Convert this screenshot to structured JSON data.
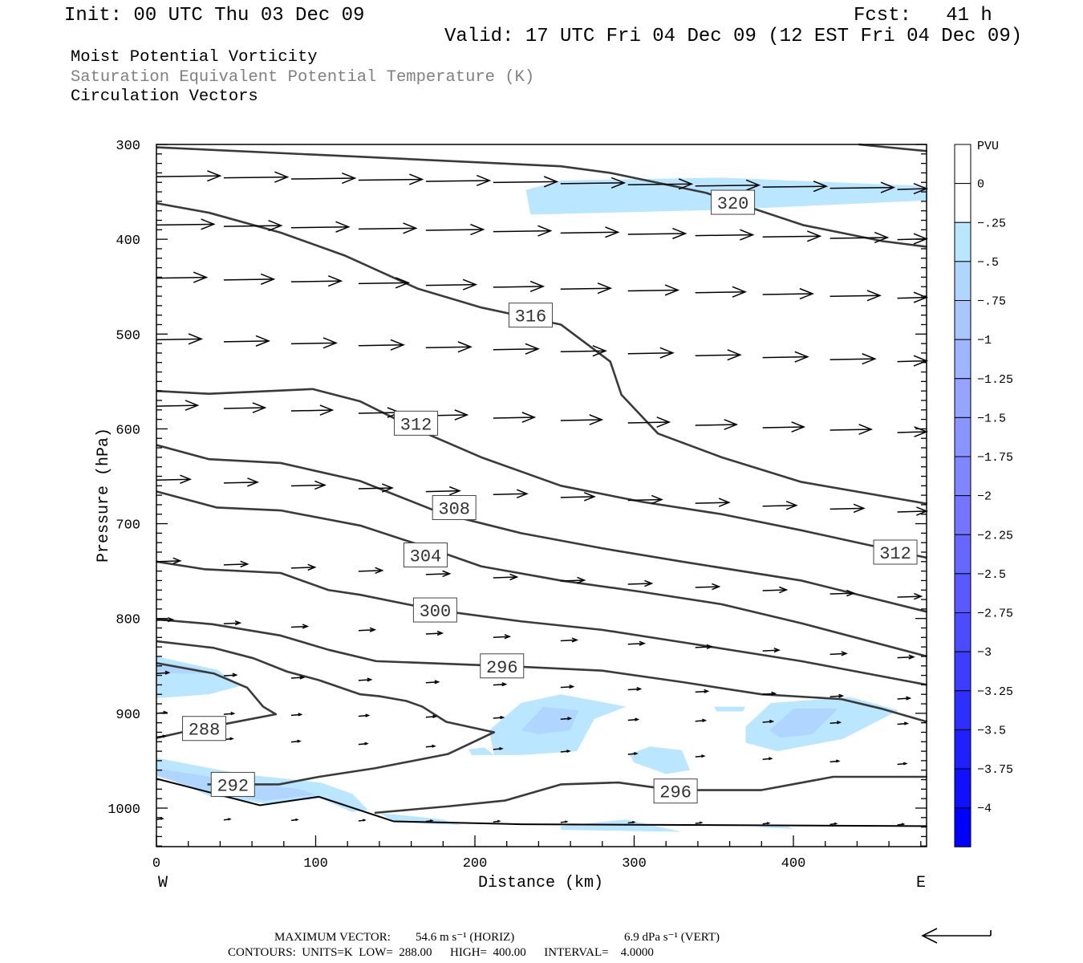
{
  "header": {
    "init": "Init: 00 UTC Thu 03 Dec 09",
    "fcst": "Fcst:   41 h",
    "valid": "Valid: 17 UTC Fri 04 Dec 09 (12 EST Fri 04 Dec 09)",
    "titles": [
      "Moist Potential Vorticity",
      "Saturation Equivalent Potential Temperature (K)",
      "Circulation Vectors"
    ]
  },
  "footer": {
    "max_vector": "MAXIMUM VECTOR:",
    "horiz": "54.6 m s⁻¹ (HORIZ)",
    "vert": "6.9 dPa s⁻¹ (VERT)",
    "contours": "CONTOURS:  UNITS=K  LOW=  288.00      HIGH=  400.00      INTERVAL=    4.0000"
  },
  "chart_data": {
    "type": "cross-section",
    "title": "Moist Potential Vorticity / Saturation Equivalent Potential Temperature (K) / Circulation Vectors",
    "xlabel": "Distance (km)",
    "ylabel": "Pressure (hPa)",
    "xlim": [
      0,
      484
    ],
    "ylim": [
      300,
      1040
    ],
    "x_ticks": [
      "0",
      "100",
      "200",
      "300",
      "400"
    ],
    "x_tick_values": [
      0,
      100,
      200,
      300,
      400
    ],
    "y_ticks": [
      "300",
      "400",
      "500",
      "600",
      "700",
      "800",
      "900",
      "1000"
    ],
    "y_tick_values": [
      300,
      400,
      500,
      600,
      700,
      800,
      900,
      1000
    ],
    "x_end_labels": {
      "west": "W",
      "east": "E"
    },
    "colorbar": {
      "units": "PVU",
      "labels": [
        "0",
        "-.25",
        "-.5",
        "-.75",
        "-1",
        "-1.25",
        "-1.5",
        "-1.75",
        "-2",
        "-2.25",
        "-2.5",
        "-2.75",
        "-3",
        "-3.25",
        "-3.5",
        "-3.75",
        "-4"
      ],
      "colors": [
        "#ffffff",
        "#ffffff",
        "#bbe6ff",
        "#b0d6ff",
        "#a8c6ff",
        "#9fb5ff",
        "#95a5ff",
        "#8a95ff",
        "#8086ff",
        "#7575ff",
        "#6767ff",
        "#5959ff",
        "#4b4bff",
        "#3d3dff",
        "#2e2eff",
        "#2020ff",
        "#1010ff",
        "#0000ff"
      ]
    },
    "pv_shading": [
      {
        "level": -0.25,
        "points": [
          [
            232,
            348
          ],
          [
            254,
            338
          ],
          [
            355,
            335
          ],
          [
            484,
            344
          ],
          [
            484,
            359
          ],
          [
            355,
            369
          ],
          [
            235,
            374
          ]
        ]
      },
      {
        "level": -0.25,
        "points": [
          [
            0,
            840
          ],
          [
            38,
            854
          ],
          [
            53,
            871
          ],
          [
            33,
            880
          ],
          [
            0,
            884
          ]
        ]
      },
      {
        "level": -0.5,
        "points": [
          [
            0,
            846
          ],
          [
            25,
            852
          ],
          [
            38,
            858
          ],
          [
            15,
            858
          ],
          [
            0,
            856
          ]
        ]
      },
      {
        "level": -0.25,
        "points": [
          [
            209,
            918
          ],
          [
            229,
            889
          ],
          [
            254,
            880
          ],
          [
            295,
            893
          ],
          [
            275,
            906
          ],
          [
            264,
            940
          ],
          [
            229,
            944
          ],
          [
            212,
            944
          ]
        ]
      },
      {
        "level": -0.5,
        "points": [
          [
            229,
            918
          ],
          [
            243,
            893
          ],
          [
            265,
            897
          ],
          [
            260,
            918
          ],
          [
            240,
            922
          ]
        ]
      },
      {
        "level": -0.25,
        "points": [
          [
            196,
            938
          ],
          [
            206,
            936
          ],
          [
            212,
            944
          ],
          [
            198,
            944
          ]
        ]
      },
      {
        "level": -0.25,
        "points": [
          [
            370,
            914
          ],
          [
            386,
            889
          ],
          [
            436,
            883
          ],
          [
            466,
            897
          ],
          [
            431,
            927
          ],
          [
            390,
            940
          ],
          [
            370,
            931
          ]
        ]
      },
      {
        "level": -0.5,
        "points": [
          [
            385,
            918
          ],
          [
            400,
            895
          ],
          [
            428,
            895
          ],
          [
            412,
            922
          ],
          [
            392,
            926
          ]
        ]
      },
      {
        "level": -0.25,
        "points": [
          [
            350,
            893
          ],
          [
            370,
            893
          ],
          [
            368,
            898
          ],
          [
            352,
            898
          ]
        ]
      },
      {
        "level": -0.25,
        "points": [
          [
            297,
            943
          ],
          [
            310,
            935
          ],
          [
            330,
            939
          ],
          [
            335,
            960
          ],
          [
            320,
            964
          ],
          [
            300,
            952
          ]
        ]
      },
      {
        "level": -0.25,
        "points": [
          [
            0,
            947
          ],
          [
            53,
            964
          ],
          [
            103,
            973
          ],
          [
            123,
            985
          ],
          [
            133,
            1002
          ],
          [
            123,
            1004
          ],
          [
            103,
            990
          ],
          [
            68,
            995
          ],
          [
            33,
            987
          ],
          [
            0,
            964
          ]
        ]
      },
      {
        "level": -0.5,
        "points": [
          [
            0,
            958
          ],
          [
            53,
            972
          ],
          [
            90,
            980
          ],
          [
            100,
            986
          ],
          [
            68,
            992
          ],
          [
            33,
            983
          ],
          [
            0,
            966
          ]
        ]
      },
      {
        "level": -0.25,
        "points": [
          [
            140,
            1005
          ],
          [
            180,
            1012
          ],
          [
            192,
            1018
          ],
          [
            150,
            1015
          ]
        ]
      },
      {
        "level": -0.25,
        "points": [
          [
            254,
            1019
          ],
          [
            295,
            1012
          ],
          [
            330,
            1025
          ],
          [
            254,
            1023
          ]
        ]
      },
      {
        "level": -0.25,
        "points": [
          [
            375,
            1020
          ],
          [
            395,
            1018
          ],
          [
            400,
            1022
          ]
        ]
      }
    ],
    "theta_es_contours": [
      {
        "value": 320,
        "points": [
          [
            0,
            303
          ],
          [
            128,
            313
          ],
          [
            254,
            323
          ],
          [
            285,
            330
          ],
          [
            345,
            351
          ],
          [
            406,
            385
          ],
          [
            456,
            402
          ],
          [
            484,
            408
          ]
        ]
      },
      {
        "value": 320,
        "points": [
          [
            441,
            300
          ],
          [
            484,
            307
          ]
        ]
      },
      {
        "value": 316,
        "points": [
          [
            0,
            362
          ],
          [
            33,
            372
          ],
          [
            78,
            393
          ],
          [
            118,
            417
          ],
          [
            164,
            452
          ],
          [
            204,
            472
          ],
          [
            254,
            490
          ],
          [
            285,
            529
          ],
          [
            292,
            564
          ],
          [
            315,
            605
          ],
          [
            355,
            630
          ],
          [
            405,
            656
          ],
          [
            484,
            679
          ]
        ]
      },
      {
        "value": 312,
        "points": [
          [
            0,
            560
          ],
          [
            33,
            563
          ],
          [
            98,
            558
          ],
          [
            128,
            571
          ],
          [
            164,
            601
          ],
          [
            204,
            630
          ],
          [
            254,
            660
          ],
          [
            305,
            677
          ],
          [
            355,
            690
          ],
          [
            405,
            707
          ],
          [
            484,
            736
          ]
        ]
      },
      {
        "value": 308,
        "points": [
          [
            0,
            617
          ],
          [
            33,
            632
          ],
          [
            78,
            636
          ],
          [
            128,
            655
          ],
          [
            179,
            689
          ],
          [
            229,
            710
          ],
          [
            280,
            726
          ],
          [
            330,
            740
          ],
          [
            405,
            760
          ],
          [
            484,
            793
          ]
        ]
      },
      {
        "value": 304,
        "points": [
          [
            0,
            666
          ],
          [
            38,
            683
          ],
          [
            78,
            686
          ],
          [
            128,
            702
          ],
          [
            170,
            725
          ],
          [
            204,
            745
          ],
          [
            254,
            760
          ],
          [
            305,
            772
          ],
          [
            355,
            785
          ],
          [
            405,
            805
          ],
          [
            484,
            840
          ]
        ]
      },
      {
        "value": 300,
        "points": [
          [
            0,
            740
          ],
          [
            30,
            748
          ],
          [
            78,
            752
          ],
          [
            108,
            770
          ],
          [
            128,
            775
          ],
          [
            175,
            791
          ],
          [
            229,
            803
          ],
          [
            280,
            812
          ],
          [
            330,
            825
          ],
          [
            405,
            845
          ],
          [
            484,
            870
          ]
        ]
      },
      {
        "value": 296,
        "points": [
          [
            0,
            801
          ],
          [
            35,
            806
          ],
          [
            78,
            818
          ],
          [
            108,
            833
          ],
          [
            138,
            845
          ],
          [
            217,
            850
          ],
          [
            280,
            855
          ],
          [
            330,
            867
          ],
          [
            380,
            880
          ],
          [
            430,
            885
          ],
          [
            455,
            895
          ],
          [
            484,
            909
          ]
        ]
      },
      {
        "value": 292,
        "points": [
          [
            0,
            824
          ],
          [
            36,
            831
          ],
          [
            61,
            842
          ],
          [
            82,
            856
          ],
          [
            102,
            865
          ],
          [
            128,
            880
          ],
          [
            140,
            882
          ],
          [
            157,
            887
          ],
          [
            167,
            893
          ],
          [
            182,
            909
          ],
          [
            212,
            920
          ],
          [
            183,
            943
          ],
          [
            137,
            958
          ],
          [
            102,
            967
          ],
          [
            77,
            975
          ],
          [
            32,
            975
          ]
        ]
      },
      {
        "value": 288,
        "points": [
          [
            0,
            847
          ],
          [
            36,
            858
          ],
          [
            57,
            873
          ],
          [
            67,
            893
          ],
          [
            75,
            901
          ],
          [
            44,
            911
          ],
          [
            16,
            920
          ],
          [
            0,
            926
          ]
        ]
      },
      {
        "value": 296,
        "points": [
          [
            137,
            1005
          ],
          [
            184,
            998
          ],
          [
            219,
            992
          ],
          [
            254,
            975
          ],
          [
            290,
            973
          ],
          [
            325,
            981
          ],
          [
            380,
            981
          ],
          [
            425,
            967
          ],
          [
            484,
            967
          ]
        ]
      }
    ],
    "terrain": {
      "points": [
        [
          0,
          969
        ],
        [
          65,
          997
        ],
        [
          102,
          988
        ],
        [
          149,
          1014
        ],
        [
          229,
          1017
        ],
        [
          484,
          1019
        ]
      ]
    },
    "contour_labels": [
      {
        "text": "320",
        "x": 362,
        "p": 361
      },
      {
        "text": "316",
        "x": 235,
        "p": 480
      },
      {
        "text": "312",
        "x": 163,
        "p": 594
      },
      {
        "text": "308",
        "x": 187,
        "p": 683
      },
      {
        "text": "304",
        "x": 169,
        "p": 733
      },
      {
        "text": "300",
        "x": 175,
        "p": 791
      },
      {
        "text": "296",
        "x": 217,
        "p": 850
      },
      {
        "text": "288",
        "x": 30,
        "p": 916
      },
      {
        "text": "292",
        "x": 48,
        "p": 975
      },
      {
        "text": "296",
        "x": 326,
        "p": 982
      },
      {
        "text": "312",
        "x": 464,
        "p": 730
      }
    ],
    "vectors": {
      "column_spacing_km": 42.3,
      "max_horiz_ms": 54.6,
      "rows": [
        {
          "p_west": 334,
          "p_east": 348,
          "u": 51
        },
        {
          "p_west": 385,
          "p_east": 401,
          "u": 46
        },
        {
          "p_west": 441,
          "p_east": 463,
          "u": 40
        },
        {
          "p_west": 506,
          "p_east": 530,
          "u": 36
        },
        {
          "p_west": 576,
          "p_east": 605,
          "u": 33
        },
        {
          "p_west": 654,
          "p_east": 689,
          "u": 27
        },
        {
          "p_west": 740,
          "p_east": 779,
          "u": 19
        },
        {
          "p_west": 802,
          "p_east": 843,
          "u": 13
        },
        {
          "p_west": 858,
          "p_east": 886,
          "u": 10
        },
        {
          "p_west": 900,
          "p_east": 912,
          "u": 8
        },
        {
          "p_west": 925,
          "p_east": 955,
          "u": 7
        },
        {
          "p_west": 1012,
          "p_east": 1018,
          "u": 5
        }
      ]
    }
  }
}
